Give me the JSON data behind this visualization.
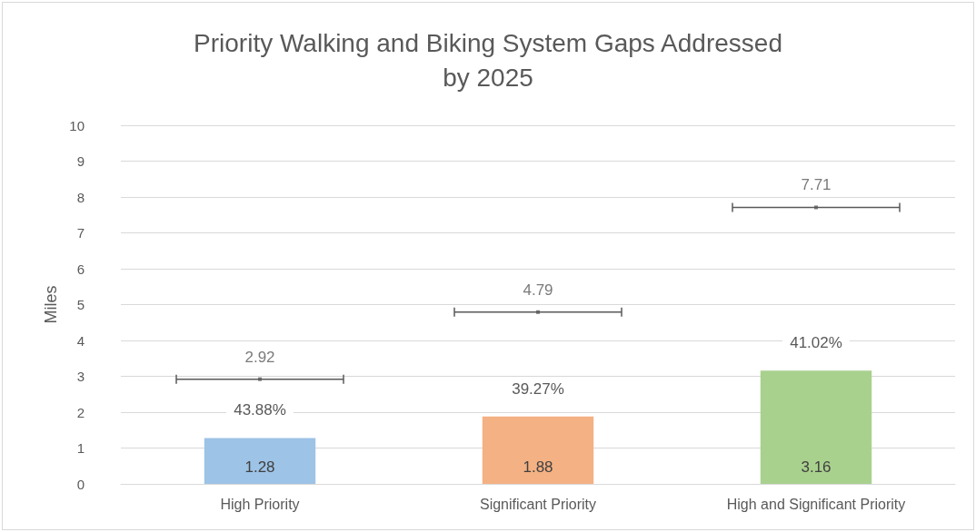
{
  "chart_data": {
    "type": "bar",
    "title": "Priority Walking and Biking System Gaps Addressed\nby 2025",
    "ylabel": "Miles",
    "categories": [
      "High Priority",
      "Significant Priority",
      "High and Significant Priority"
    ],
    "series": [
      {
        "type": "bar",
        "colors": [
          "#9dc3e6",
          "#f4b183",
          "#a9d18e"
        ],
        "values": [
          1.28,
          1.88,
          3.16
        ]
      },
      {
        "type": "scatter",
        "color": "#595959",
        "values": [
          2.92,
          4.79,
          7.71
        ]
      }
    ],
    "annotations": [
      {
        "text": "43.88%",
        "x": "High Priority",
        "y": 1.28
      },
      {
        "text": "39.27%",
        "x": "Significant Priority",
        "y": 1.88
      },
      {
        "text": "41.02%",
        "x": "High and Significant Priority",
        "y": 3.16
      }
    ],
    "ylim": [
      0,
      10
    ],
    "yticks": [
      0,
      1,
      2,
      3,
      4,
      5,
      6,
      7,
      8,
      9,
      10
    ],
    "grid": "y",
    "data_labels": true
  }
}
